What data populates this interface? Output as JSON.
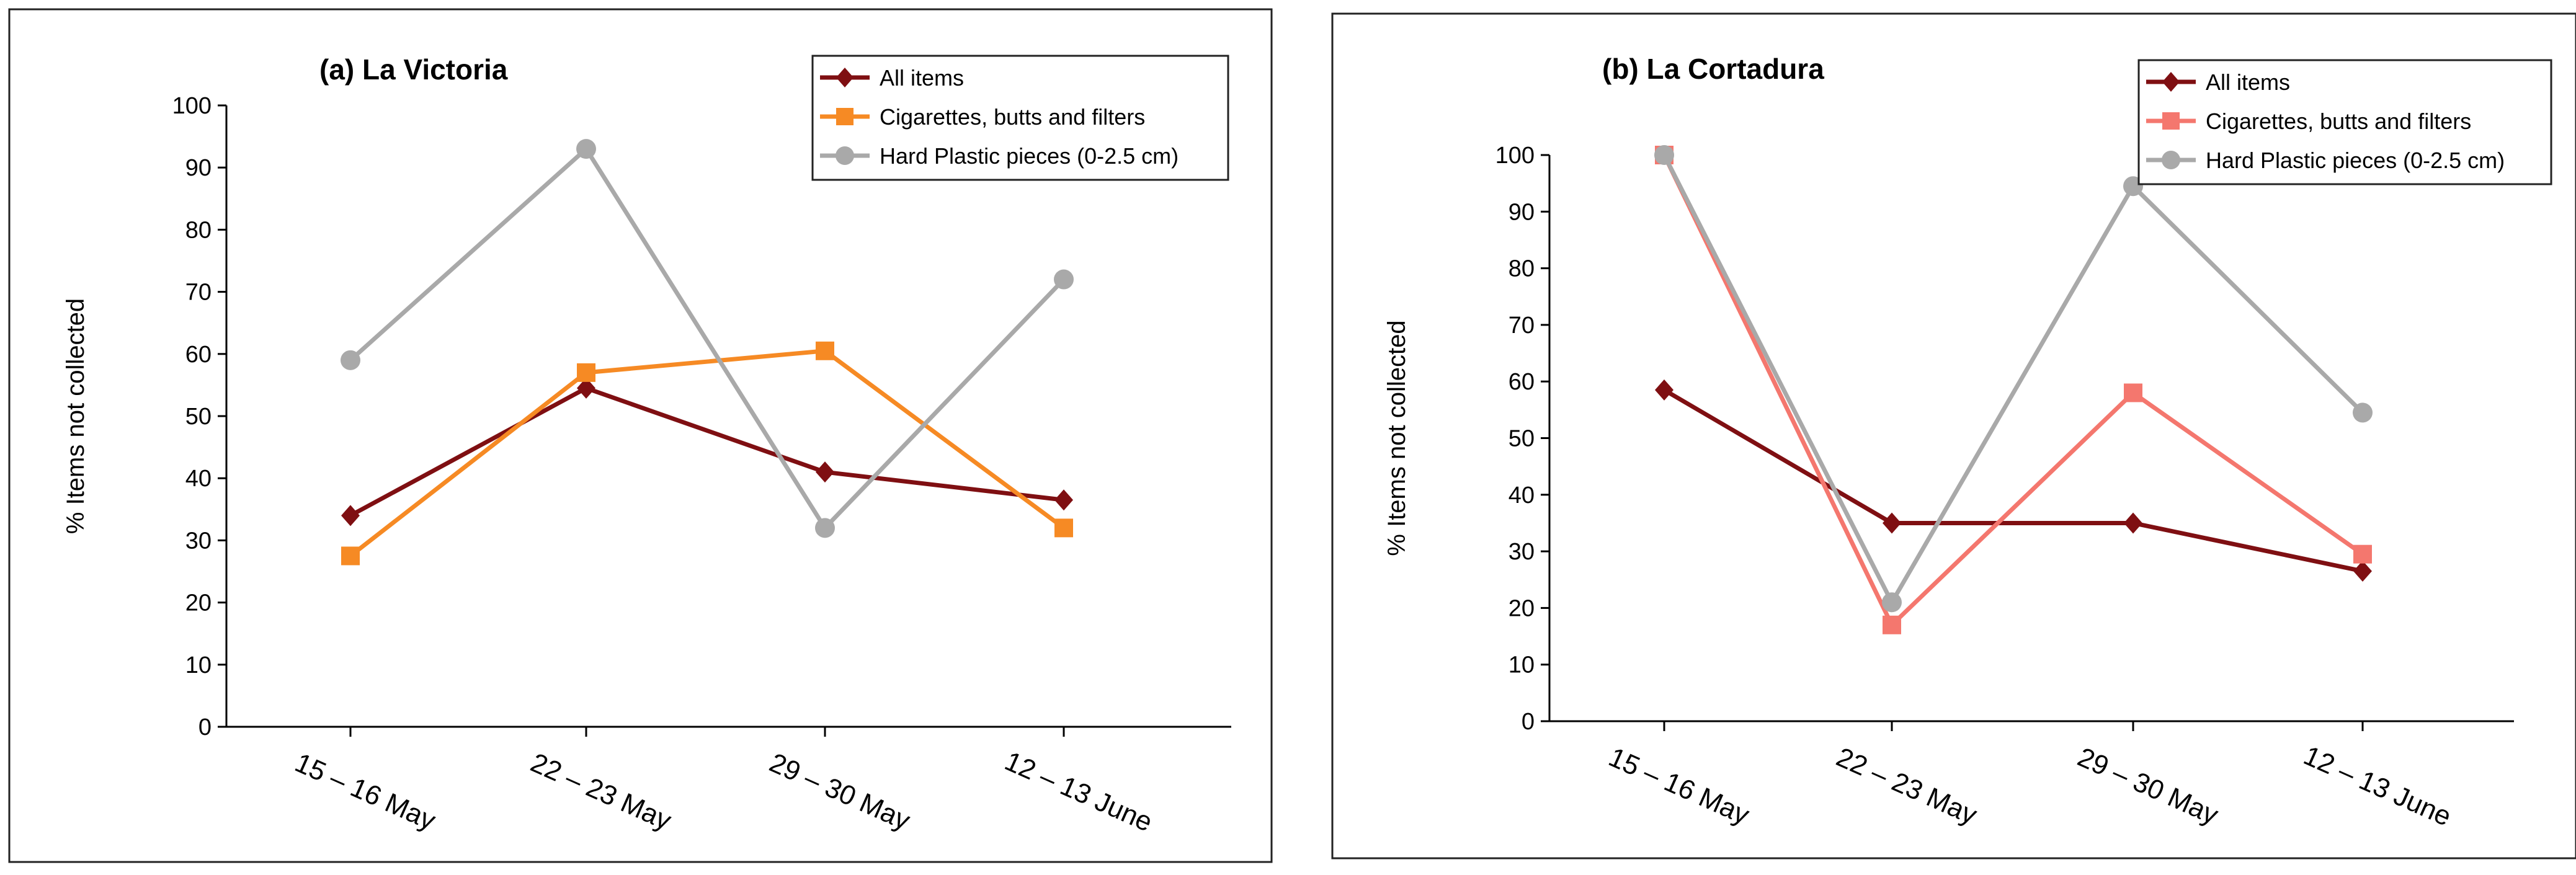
{
  "chart_data": [
    {
      "type": "line",
      "title": "(a) La Victoria",
      "xlabel": "",
      "ylabel": "% Items not collected",
      "ylim": [
        0,
        100
      ],
      "y_ticks": [
        "0",
        "10",
        "20",
        "30",
        "40",
        "50",
        "60",
        "70",
        "80",
        "90",
        "100"
      ],
      "grid": false,
      "legend_position": "top-right",
      "categories": [
        "15 – 16 May",
        "22 – 23 May",
        "29 – 30 May",
        "12 – 13 June"
      ],
      "series": [
        {
          "name": "All items",
          "color": "#7f0f12",
          "marker": "diamond",
          "values": [
            34,
            54.5,
            41,
            36.5
          ]
        },
        {
          "name": "Cigarettes, butts and filters",
          "color": "#f68a24",
          "marker": "square",
          "values": [
            27.5,
            57,
            60.5,
            32
          ]
        },
        {
          "name": "Hard Plastic pieces (0-2.5 cm)",
          "color": "#a9a9a9",
          "marker": "circle",
          "values": [
            59,
            93,
            32,
            72
          ]
        }
      ]
    },
    {
      "type": "line",
      "title": "(b) La Cortadura",
      "xlabel": "",
      "ylabel": "% Items not collected",
      "ylim": [
        0,
        100
      ],
      "y_ticks": [
        "0",
        "10",
        "20",
        "30",
        "40",
        "50",
        "60",
        "70",
        "80",
        "90",
        "100"
      ],
      "grid": false,
      "legend_position": "top-right",
      "categories": [
        "15 – 16 May",
        "22 – 23 May",
        "29 – 30 May",
        "12 – 13 June"
      ],
      "series": [
        {
          "name": "All items",
          "color": "#7f0f12",
          "marker": "diamond",
          "values": [
            58.5,
            35,
            35,
            26.5
          ]
        },
        {
          "name": "Cigarettes, butts and filters",
          "color": "#f4776e",
          "marker": "square",
          "values": [
            100,
            17,
            58,
            29.5
          ]
        },
        {
          "name": "Hard Plastic pieces (0-2.5 cm)",
          "color": "#a9a9a9",
          "marker": "circle",
          "values": [
            100,
            21,
            94.5,
            54.5
          ]
        }
      ]
    }
  ]
}
